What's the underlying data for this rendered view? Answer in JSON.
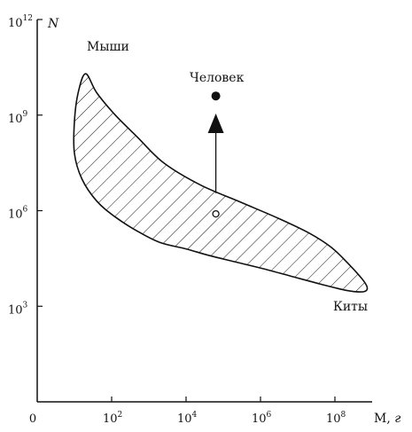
{
  "chart_data": {
    "type": "area",
    "title": "",
    "xlabel": {
      "main": "M, ",
      "unit": "г"
    },
    "ylabel": "N",
    "x_scale": "log",
    "y_scale": "log",
    "xlim_log10": [
      0,
      9
    ],
    "ylim_log10": [
      0,
      12
    ],
    "x_origin_label": "0",
    "x_ticks": [
      {
        "base": "10",
        "exp": "2",
        "value": 100
      },
      {
        "base": "10",
        "exp": "4",
        "value": 10000
      },
      {
        "base": "10",
        "exp": "6",
        "value": 1000000
      },
      {
        "base": "10",
        "exp": "8",
        "value": 100000000
      }
    ],
    "y_ticks": [
      {
        "base": "10",
        "exp": "3",
        "value": 1000
      },
      {
        "base": "10",
        "exp": "6",
        "value": 1000000
      },
      {
        "base": "10",
        "exp": "9",
        "value": 1000000000
      },
      {
        "base": "10",
        "exp": "12",
        "value": 1000000000000
      }
    ],
    "grid": false,
    "legend": "none",
    "region": {
      "fill": "hatched",
      "boundary_log10": [
        [
          1.3,
          10.3
        ],
        [
          1.6,
          9.7
        ],
        [
          2.1,
          9.0
        ],
        [
          2.7,
          8.3
        ],
        [
          3.4,
          7.5
        ],
        [
          4.4,
          6.8
        ],
        [
          5.5,
          6.25
        ],
        [
          6.5,
          5.75
        ],
        [
          7.3,
          5.3
        ],
        [
          7.9,
          4.85
        ],
        [
          8.35,
          4.35
        ],
        [
          8.7,
          3.9
        ],
        [
          8.85,
          3.65
        ],
        [
          8.85,
          3.5
        ],
        [
          8.7,
          3.45
        ],
        [
          8.3,
          3.5
        ],
        [
          7.6,
          3.7
        ],
        [
          6.8,
          3.95
        ],
        [
          6.0,
          4.2
        ],
        [
          5.3,
          4.4
        ],
        [
          4.6,
          4.6
        ],
        [
          4.0,
          4.8
        ],
        [
          3.3,
          5.0
        ],
        [
          2.7,
          5.35
        ],
        [
          2.1,
          5.8
        ],
        [
          1.6,
          6.3
        ],
        [
          1.2,
          7.0
        ],
        [
          1.0,
          7.8
        ],
        [
          1.0,
          8.8
        ],
        [
          1.1,
          9.7
        ]
      ]
    },
    "points": [
      {
        "name": "",
        "x_log10": 4.8,
        "y_log10": 5.9,
        "style": "open"
      },
      {
        "name": "",
        "x_log10": 4.8,
        "y_log10": 9.6,
        "style": "filled"
      }
    ],
    "arrow": {
      "x_log10": 4.8,
      "from_y_log10": 6.55,
      "to_y_log10": 9.05
    },
    "annotations": [
      {
        "id": "mice",
        "text": "Мыши"
      },
      {
        "id": "human",
        "text": "Человек"
      },
      {
        "id": "whales",
        "text": "Киты"
      }
    ]
  }
}
